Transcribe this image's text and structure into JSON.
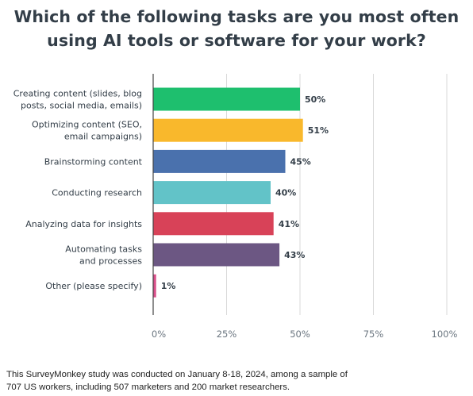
{
  "title": {
    "line1": "Which of the following tasks are you most often",
    "line2": "using AI tools or software for your work?"
  },
  "chart_data": {
    "type": "bar",
    "orientation": "horizontal",
    "categories": [
      [
        "Creating content (slides, blog",
        "posts, social media, emails)"
      ],
      [
        "Optimizing content (SEO,",
        "email campaigns)"
      ],
      [
        "Brainstorming content"
      ],
      [
        "Conducting research"
      ],
      [
        "Analyzing data for insights"
      ],
      [
        "Automating tasks",
        "and processes"
      ],
      [
        "Other (please specify)"
      ]
    ],
    "values": [
      50,
      51,
      45,
      40,
      41,
      43,
      1
    ],
    "value_labels": [
      "50%",
      "51%",
      "45%",
      "40%",
      "41%",
      "43%",
      "1%"
    ],
    "colors": [
      "#1ebf6e",
      "#f9b82c",
      "#4a71ad",
      "#62c3c8",
      "#d84258",
      "#6c5783",
      "#d94f8a"
    ],
    "xlim": [
      0,
      100
    ],
    "xticks": [
      0,
      25,
      50,
      75,
      100
    ],
    "xtick_labels": [
      "0%",
      "25%",
      "50%",
      "75%",
      "100%"
    ],
    "grid": true
  },
  "footnote": {
    "line1": "This SurveyMonkey study was conducted on January 8-18, 2024, among a sample of",
    "line2": "707 US workers, including 507 marketers and 200 market researchers."
  }
}
